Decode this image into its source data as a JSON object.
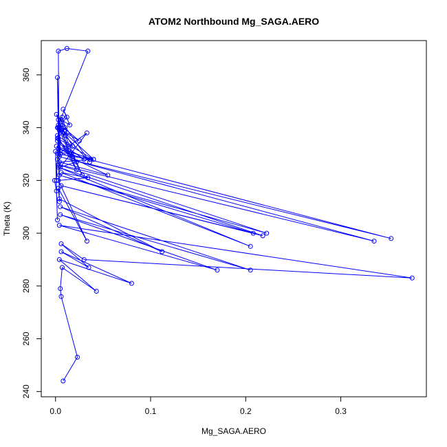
{
  "chart_data": {
    "type": "line",
    "title": "ATOM2 Northbound Mg_SAGA.AERO",
    "xlabel": "Mg_SAGA.AERO",
    "ylabel": "Theta (K)",
    "xlim": [
      -0.015,
      0.39
    ],
    "ylim": [
      238,
      373
    ],
    "xticks": [
      0.0,
      0.1,
      0.2,
      0.3
    ],
    "xtick_labels": [
      "0.0",
      "0.1",
      "0.2",
      "0.3"
    ],
    "yticks": [
      240,
      260,
      280,
      300,
      320,
      340,
      360
    ],
    "ytick_labels": [
      "240",
      "260",
      "280",
      "300",
      "320",
      "340",
      "360"
    ],
    "grid": false,
    "series": [
      {
        "name": "ATOM2 Northbound",
        "color": "#0000ff",
        "marker": "open-circle",
        "x": [
          0.008,
          0.023,
          0.006,
          0.005,
          0.007,
          0.043,
          0.004,
          0.08,
          0.006,
          0.035,
          0.006,
          0.03,
          0.375,
          0.004,
          0.17,
          0.005,
          0.205,
          0.005,
          0.112,
          0.004,
          0.003,
          0.033,
          0.003,
          0.034,
          0.006,
          0.205,
          0.003,
          0.218,
          0.006,
          0.208,
          0.004,
          0.222,
          0.003,
          0.335,
          0.004,
          0.353,
          0.003,
          0.055,
          0.004,
          0.04,
          0.003,
          0.03,
          0.002,
          0.022,
          0.005,
          0.033,
          0.003,
          0.037,
          0.001,
          0.018,
          0.002,
          0.04,
          0.004,
          0.028,
          0.003,
          0.015,
          0.001,
          0.036,
          0.002,
          0.025,
          0.005,
          0.018,
          0.002,
          0.022,
          0.003,
          0.012,
          0.008,
          0.015,
          0.006,
          0.01,
          0.004,
          0.012,
          0.007,
          0.01,
          0.003,
          0.005,
          0.002,
          0.004,
          0.003,
          0.012,
          0.034,
          0.003,
          0.002,
          0.001,
          0.0,
          0.002,
          0.001,
          -0.001
        ],
        "y": [
          244,
          253,
          276,
          279,
          287,
          278,
          290,
          281,
          293,
          287,
          296,
          290,
          283,
          303,
          286,
          307,
          286,
          310,
          293,
          313,
          317,
          297,
          320,
          321,
          323,
          295,
          325,
          299,
          318,
          300,
          322,
          300,
          326,
          297,
          329,
          298,
          331,
          322,
          327,
          328,
          332,
          328,
          335,
          327,
          325,
          338,
          330,
          328,
          333,
          329,
          336,
          328,
          340,
          322,
          343,
          330,
          345,
          327,
          340,
          335,
          341,
          333,
          337,
          324,
          340,
          344,
          347,
          341,
          343,
          337,
          339,
          338,
          344,
          340,
          336,
          330,
          359,
          312,
          369,
          370,
          369,
          341,
          328,
          320,
          331,
          305,
          316,
          320
        ]
      }
    ]
  }
}
